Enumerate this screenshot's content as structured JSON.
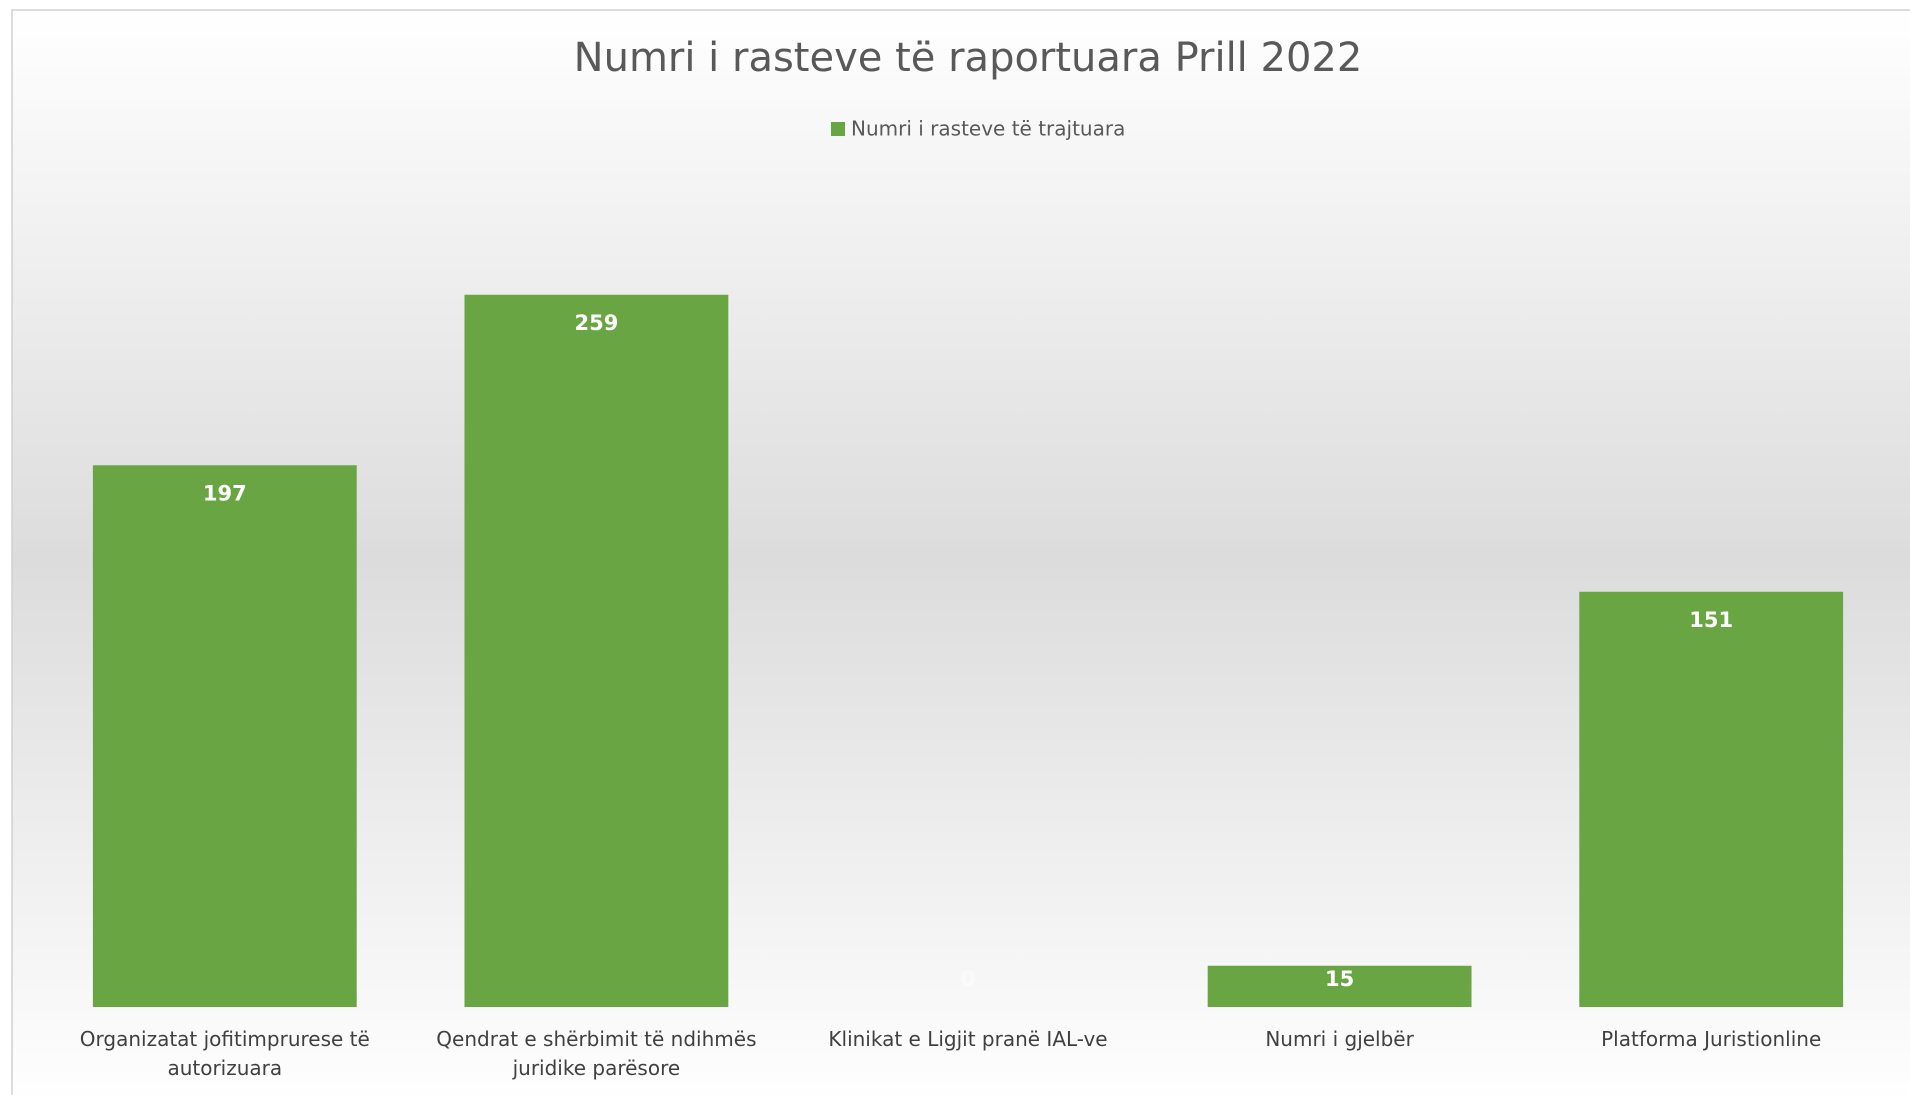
{
  "chart_data": {
    "type": "bar",
    "title": "Numri i rasteve të raportuara Prill 2022",
    "categories": [
      "Organizatat jofitimprurese të autorizuara",
      "Qendrat e shërbimit të ndihmës juridike parësore",
      "Klinikat e Ligjit pranë IAL-ve",
      "Numri i gjelbër",
      "Platforma Juristionline"
    ],
    "series": [
      {
        "name": "Numri i rasteve të trajtuara",
        "color": "#6aa544",
        "values": [
          197,
          259,
          0,
          15,
          151
        ]
      }
    ],
    "ylim": [
      0,
      300
    ],
    "legend": "top"
  }
}
